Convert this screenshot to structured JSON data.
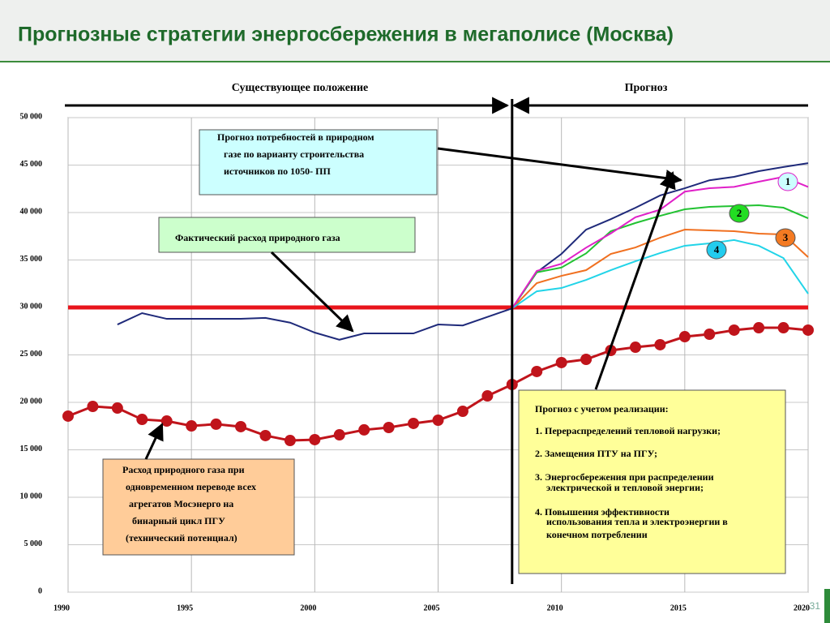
{
  "chart_data": {
    "type": "line",
    "title": "Прогнозные стратегии энергосбережения в мегаполисе (Москва)",
    "period_labels": [
      "Существующее положение",
      "Прогноз"
    ],
    "page_number": "31",
    "x": [
      1990,
      1991,
      1992,
      1993,
      1994,
      1995,
      1996,
      1997,
      1998,
      1999,
      2000,
      2001,
      2002,
      2003,
      2004,
      2005,
      2006,
      2007,
      2008,
      2009,
      2010,
      2011,
      2012,
      2013,
      2014,
      2015,
      2016,
      2017,
      2018,
      2019,
      2020
    ],
    "xlim": [
      1990,
      2020
    ],
    "xticks": [
      1990,
      1995,
      2000,
      2005,
      2010,
      2015,
      2020
    ],
    "ylim": [
      0,
      50000
    ],
    "yticks": [
      0,
      {
        "value": 5000,
        "label": "5 000"
      },
      {
        "value": 10000,
        "label": "10 000"
      },
      {
        "value": 15000,
        "label": "15 000"
      },
      {
        "value": 20000,
        "label": "20 000"
      },
      {
        "value": 25000,
        "label": "25 000"
      },
      {
        "value": 30000,
        "label": "30 000"
      },
      {
        "value": 35000,
        "label": "35 000"
      },
      {
        "value": 40000,
        "label": "40 000"
      },
      {
        "value": 45000,
        "label": "45 000"
      },
      {
        "value": 50000,
        "label": "50 000"
      }
    ],
    "grid": true,
    "hline": {
      "value": 30000,
      "color": "#e8141b"
    },
    "vline": {
      "value": 2008,
      "color": "#000000"
    },
    "series": [
      {
        "color": "#1f2a7a",
        "values": [
          null,
          null,
          28200,
          29400,
          28800,
          28800,
          28800,
          28800,
          28900,
          28400,
          27350,
          26600,
          27260,
          27260,
          27260,
          28200,
          28100,
          29000,
          29900,
          null,
          null,
          null,
          null,
          null,
          null,
          null,
          null,
          null,
          null,
          null,
          null
        ]
      },
      {
        "color": "#c0141b",
        "markers": true,
        "values": [
          18550,
          19570,
          19400,
          18200,
          18030,
          17520,
          17700,
          17440,
          16500,
          15980,
          16070,
          16580,
          17100,
          17350,
          17780,
          18120,
          19060,
          20680,
          21880,
          23250,
          24190,
          24530,
          25470,
          25810,
          26070,
          26920,
          27180,
          27610,
          27860,
          27860,
          27610
        ]
      },
      {
        "name": "1",
        "color": "#1f2a7a",
        "label_fill": "#ccffff",
        "values": [
          null,
          null,
          null,
          null,
          null,
          null,
          null,
          null,
          null,
          null,
          null,
          null,
          null,
          null,
          null,
          null,
          null,
          null,
          29900,
          33700,
          35640,
          38200,
          39300,
          40500,
          41800,
          42560,
          43400,
          43760,
          44360,
          44800,
          45200
        ]
      },
      {
        "name": "2",
        "color": "#22c232",
        "label_fill": "#22dd22",
        "values": [
          null,
          null,
          null,
          null,
          null,
          null,
          null,
          null,
          null,
          null,
          null,
          null,
          null,
          null,
          null,
          null,
          null,
          null,
          29900,
          33700,
          34200,
          35700,
          38030,
          38900,
          39650,
          40340,
          40600,
          40680,
          40770,
          40510,
          39400
        ]
      },
      {
        "name": "3",
        "color": "#f07020",
        "label_fill": "#f47a22",
        "values": [
          null,
          null,
          null,
          null,
          null,
          null,
          null,
          null,
          null,
          null,
          null,
          null,
          null,
          null,
          null,
          null,
          null,
          null,
          29900,
          32560,
          33330,
          33930,
          35640,
          36320,
          37350,
          38200,
          38120,
          38030,
          37780,
          37690,
          35300
        ]
      },
      {
        "name": "4",
        "color": "#22d4e8",
        "label_fill": "#22ccee",
        "values": [
          null,
          null,
          null,
          null,
          null,
          null,
          null,
          null,
          null,
          null,
          null,
          null,
          null,
          null,
          null,
          null,
          null,
          null,
          29900,
          31700,
          32050,
          32900,
          33930,
          34870,
          35730,
          36500,
          36750,
          37100,
          36500,
          35200,
          31450
        ]
      },
      {
        "color": "#e020c8",
        "values": [
          null,
          null,
          null,
          null,
          null,
          null,
          null,
          null,
          null,
          null,
          null,
          null,
          null,
          null,
          null,
          null,
          null,
          null,
          29900,
          33850,
          34600,
          36300,
          37800,
          39500,
          40300,
          42200,
          42560,
          42700,
          43250,
          43760,
          42700
        ]
      }
    ],
    "annotations": [
      {
        "lines": [
          "Прогноз потребностей в природном",
          "газе по варианту строительства",
          "источников по  1050- ПП"
        ]
      },
      {
        "lines": [
          "Фактический расход природного газа"
        ]
      },
      {
        "lines": [
          "Расход природного газа при",
          "одновременном переводе всех",
          "агрегатов Мосэнерго на",
          "бинарный цикл ПГУ",
          "(технический потенциал)"
        ]
      },
      {
        "lines": [
          "Прогноз с учетом реализации:",
          "1. Перераспределений тепловой нагрузки;",
          "2. Замещения ПТУ на ПГУ;",
          "3. Энергосбережения при распределении",
          "электрической и тепловой энергии;",
          "4. Повышения эффективности",
          "использования тепла и электроэнергии в",
          "конечном потреблении"
        ]
      }
    ]
  }
}
